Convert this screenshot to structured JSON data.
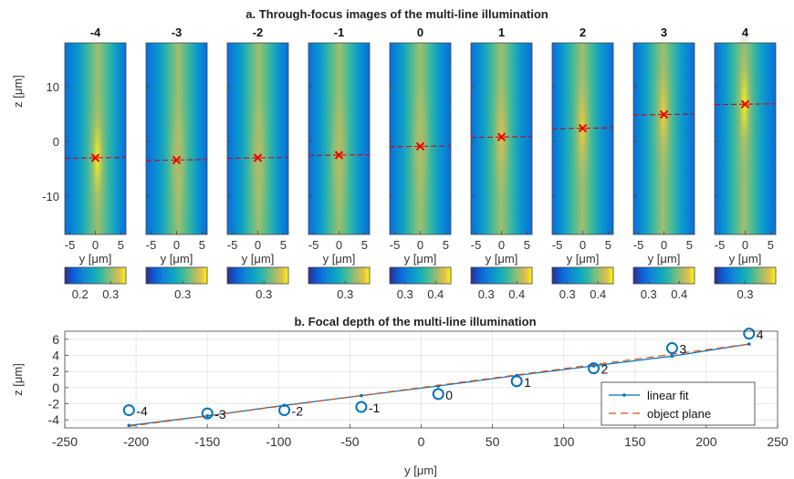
{
  "chart_data": [
    {
      "type": "heatmap",
      "title": "a. Through-focus images of the multi-line illumination",
      "xlabel": "y [μm]",
      "ylabel": "z [μm]",
      "xlim": [
        -6,
        6
      ],
      "ylim": [
        -17,
        18
      ],
      "xticks": [
        -5,
        0,
        5
      ],
      "yticks": [
        10,
        0,
        -10
      ],
      "panels": [
        {
          "label": "-4",
          "focus": -3.0,
          "cbar_ticks": [
            0.2,
            0.3
          ],
          "cbar_range": [
            0.15,
            0.35
          ],
          "peak": 0.34,
          "shift": 1.0
        },
        {
          "label": "-3",
          "focus": -3.4,
          "cbar_ticks": [
            0.3
          ],
          "cbar_range": [
            0.18,
            0.38
          ],
          "peak": 0.33,
          "shift": 0.7
        },
        {
          "label": "-2",
          "focus": -3.0,
          "cbar_ticks": [
            0.3
          ],
          "cbar_range": [
            0.18,
            0.38
          ],
          "peak": 0.33,
          "shift": 0.4
        },
        {
          "label": "-1",
          "focus": -2.5,
          "cbar_ticks": [
            0.3
          ],
          "cbar_range": [
            0.18,
            0.38
          ],
          "peak": 0.33,
          "shift": 0.1
        },
        {
          "label": "0",
          "focus": -0.9,
          "cbar_ticks": [
            0.3,
            0.4
          ],
          "cbar_range": [
            0.25,
            0.45
          ],
          "peak": 0.4,
          "shift": 0.0
        },
        {
          "label": "1",
          "focus": 0.8,
          "cbar_ticks": [
            0.3,
            0.4
          ],
          "cbar_range": [
            0.25,
            0.45
          ],
          "peak": 0.42,
          "shift": -0.1
        },
        {
          "label": "2",
          "focus": 2.4,
          "cbar_ticks": [
            0.3,
            0.4
          ],
          "cbar_range": [
            0.25,
            0.45
          ],
          "peak": 0.43,
          "shift": -0.2
        },
        {
          "label": "3",
          "focus": 4.9,
          "cbar_ticks": [
            0.3,
            0.4
          ],
          "cbar_range": [
            0.25,
            0.45
          ],
          "peak": 0.43,
          "shift": -0.3
        },
        {
          "label": "4",
          "focus": 6.8,
          "cbar_ticks": [
            0.3
          ],
          "cbar_range": [
            0.2,
            0.4
          ],
          "peak": 0.4,
          "shift": -0.4
        }
      ]
    },
    {
      "type": "scatter",
      "title": "b. Focal depth of the multi-line illumination",
      "xlabel": "y [μm]",
      "ylabel": "z [μm]",
      "xlim": [
        -250,
        250
      ],
      "ylim": [
        -5,
        7
      ],
      "xticks": [
        -250,
        -200,
        -150,
        -100,
        -50,
        0,
        50,
        100,
        150,
        200,
        250
      ],
      "yticks": [
        -4,
        -2,
        0,
        2,
        4,
        6
      ],
      "grid": true,
      "legend_position": "bottom-right",
      "points": [
        {
          "label": "-4",
          "x": -205,
          "y": -2.8
        },
        {
          "label": "-3",
          "x": -150,
          "y": -3.2
        },
        {
          "label": "-2",
          "x": -96,
          "y": -2.8
        },
        {
          "label": "-1",
          "x": -42,
          "y": -2.4
        },
        {
          "label": "0",
          "x": 12,
          "y": -0.8
        },
        {
          "label": "1",
          "x": 67,
          "y": 0.8
        },
        {
          "label": "2",
          "x": 121,
          "y": 2.4
        },
        {
          "label": "3",
          "x": 176,
          "y": 4.9
        },
        {
          "label": "4",
          "x": 230,
          "y": 6.7
        }
      ],
      "series": [
        {
          "name": "linear fit",
          "x": [
            -205,
            -150,
            -96,
            -42,
            12,
            67,
            121,
            176,
            230
          ],
          "y": [
            -4.7,
            -3.5,
            -2.2,
            -1.0,
            0.2,
            1.5,
            2.7,
            3.9,
            5.4
          ],
          "color": "#0072BD",
          "style": "solid-dot"
        },
        {
          "name": "object plane",
          "x": [
            -205,
            230
          ],
          "y": [
            -4.8,
            5.4
          ],
          "color": "#D95319",
          "style": "dashed"
        }
      ]
    }
  ]
}
